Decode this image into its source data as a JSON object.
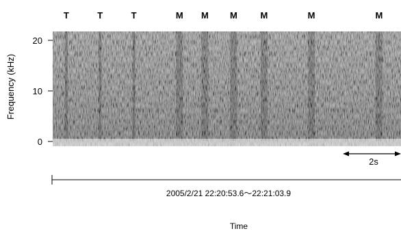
{
  "chart_data": {
    "type": "spectrogram",
    "ylabel": "Frequency (kHz)",
    "xlabel": "Time",
    "yticks": [
      0,
      10,
      20
    ],
    "ylim": [
      -1,
      22
    ],
    "event_markers": [
      {
        "label": "T",
        "time_s": 0.4
      },
      {
        "label": "T",
        "time_s": 1.4
      },
      {
        "label": "T",
        "time_s": 2.4
      },
      {
        "label": "M",
        "time_s": 3.75
      },
      {
        "label": "M",
        "time_s": 4.5
      },
      {
        "label": "M",
        "time_s": 5.35
      },
      {
        "label": "M",
        "time_s": 6.25
      },
      {
        "label": "M",
        "time_s": 7.65
      },
      {
        "label": "M",
        "time_s": 9.65
      }
    ],
    "scale_bar_label": "2s",
    "scale_bar_seconds": 2,
    "time_range_label": "2005/2/21   22:20:53.6～22:21:03.9",
    "duration_s": 10.3,
    "colors": {
      "background": "#ffffff",
      "ink": "#000000"
    }
  }
}
